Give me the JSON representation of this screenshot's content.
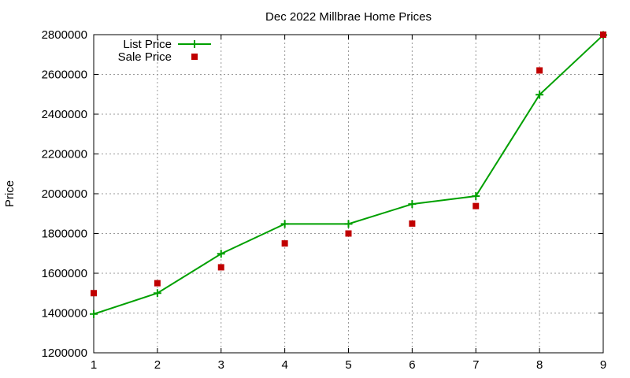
{
  "chart_data": {
    "type": "line",
    "title": "Dec 2022 Millbrae Home Prices",
    "xlabel": "",
    "ylabel": "Price",
    "x": [
      1,
      2,
      3,
      4,
      5,
      6,
      7,
      8,
      9
    ],
    "xlim": [
      1,
      9
    ],
    "ylim": [
      1200000,
      2800000
    ],
    "xticks": [
      1,
      2,
      3,
      4,
      5,
      6,
      7,
      8,
      9
    ],
    "yticks": [
      1200000,
      1400000,
      1600000,
      1800000,
      2000000,
      2200000,
      2400000,
      2600000,
      2800000
    ],
    "grid": true,
    "legend_position": "top-left",
    "series": [
      {
        "name": "List Price",
        "type": "line",
        "color": "#00a000",
        "marker": "plus",
        "values": [
          1395000,
          1500000,
          1698000,
          1848000,
          1848000,
          1948000,
          1988000,
          2498000,
          2798000
        ]
      },
      {
        "name": "Sale Price",
        "type": "scatter",
        "color": "#c00000",
        "marker": "square",
        "values": [
          1500000,
          1550000,
          1630000,
          1750000,
          1800000,
          1850000,
          1938000,
          2620000,
          2800000
        ]
      }
    ]
  }
}
